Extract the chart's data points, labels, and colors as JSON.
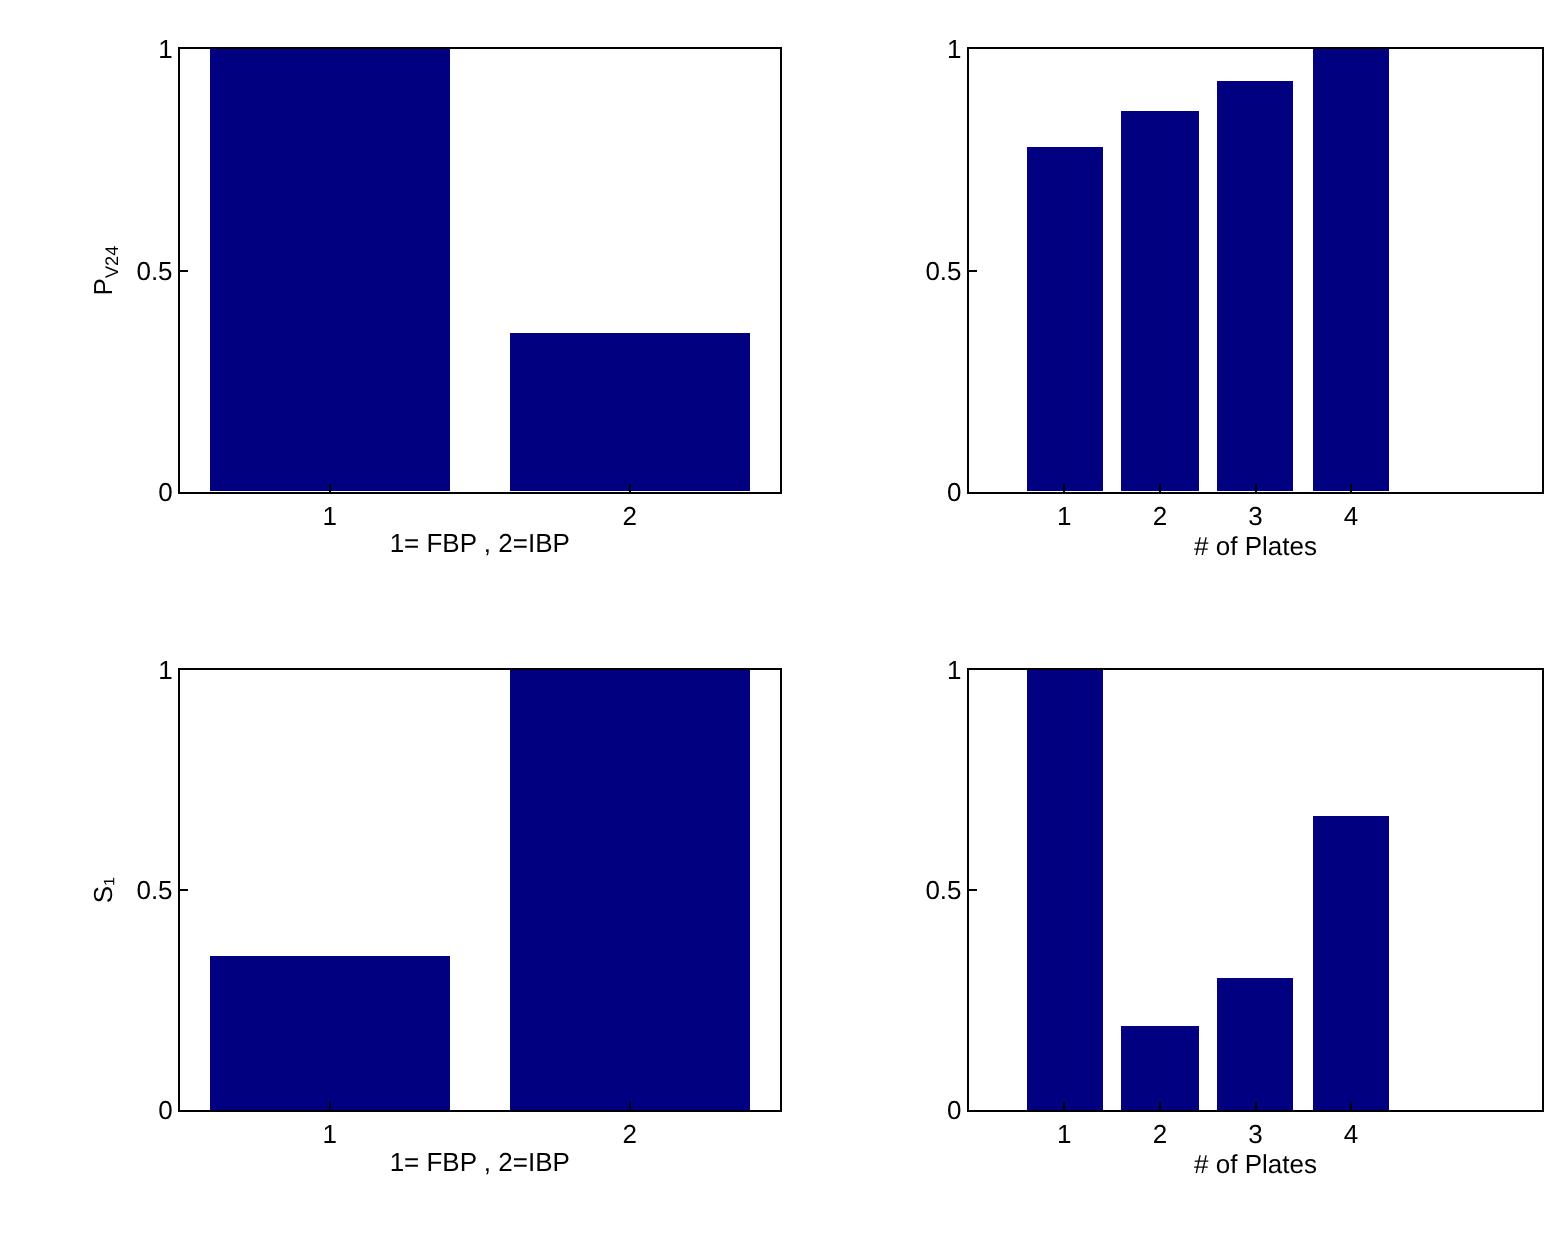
{
  "chart_data": [
    {
      "type": "bar",
      "x": [
        1,
        2
      ],
      "values": [
        1,
        0.36
      ],
      "color": "#000080",
      "xlim": [
        0.5,
        2.5
      ],
      "xticks": [
        1,
        2
      ],
      "ylim": [
        0,
        1
      ],
      "yticks": [
        0,
        0.5,
        1
      ],
      "xlabel": "1= FBP , 2=IBP",
      "ylabel": "P$_{V24}$"
    },
    {
      "type": "bar",
      "x": [
        1,
        2,
        3,
        4
      ],
      "values": [
        0.78,
        0.86,
        0.93,
        1
      ],
      "color": "#000080",
      "xlim": [
        0,
        6
      ],
      "xticks": [
        1,
        2,
        3,
        4
      ],
      "ylim": [
        0,
        1
      ],
      "yticks": [
        0,
        0.5,
        1
      ],
      "xlabel": "# of Plates"
    },
    {
      "type": "bar",
      "x": [
        1,
        2
      ],
      "values": [
        0.35,
        1
      ],
      "color": "#000080",
      "xlim": [
        0.5,
        2.5
      ],
      "xticks": [
        1,
        2
      ],
      "ylim": [
        0,
        1
      ],
      "yticks": [
        0,
        0.5,
        1
      ],
      "xlabel": "1= FBP , 2=IBP",
      "ylabel": "S₁"
    },
    {
      "type": "bar",
      "x": [
        1,
        2,
        3,
        4
      ],
      "values": [
        1,
        0.19,
        0.3,
        0.67
      ],
      "color": "#000080",
      "xlim": [
        0,
        6
      ],
      "xticks": [
        1,
        2,
        3,
        4
      ],
      "ylim": [
        0,
        1
      ],
      "yticks": [
        0,
        0.5,
        1
      ],
      "xlabel": "# of Plates"
    }
  ]
}
